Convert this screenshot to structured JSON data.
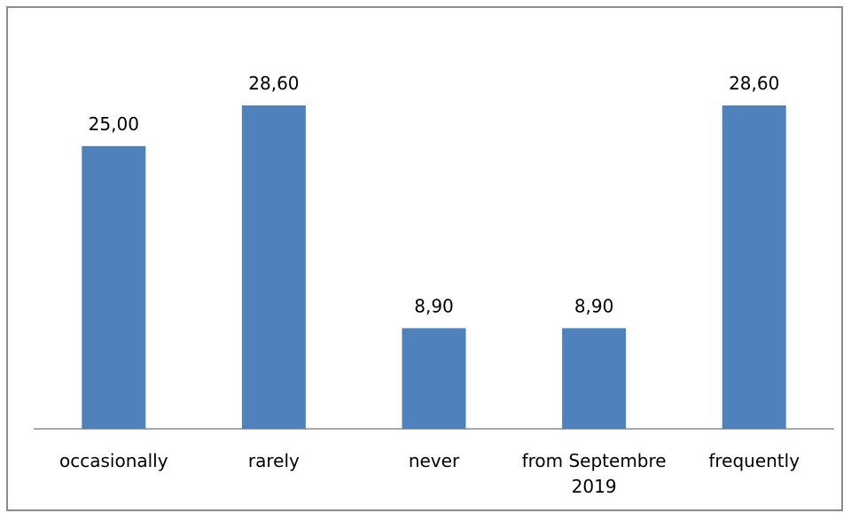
{
  "chart_data": {
    "type": "bar",
    "title": "",
    "xlabel": "",
    "ylabel": "",
    "categories": [
      "occasionally",
      "rarely",
      "never",
      "from Septembre 2019",
      "frequently"
    ],
    "category_lines": [
      [
        "occasionally"
      ],
      [
        "rarely"
      ],
      [
        "never"
      ],
      [
        "from Septembre",
        "2019"
      ],
      [
        "frequently"
      ]
    ],
    "values": [
      25.0,
      28.6,
      8.9,
      8.9,
      28.6
    ],
    "data_labels": [
      "25,00",
      "28,60",
      "8,90",
      "8,90",
      "28,60"
    ],
    "ylim": [
      0,
      28.6
    ],
    "grid": false,
    "legend": "none",
    "bar_color": "#4f81bd",
    "axis_color": "#8c8c8c"
  }
}
